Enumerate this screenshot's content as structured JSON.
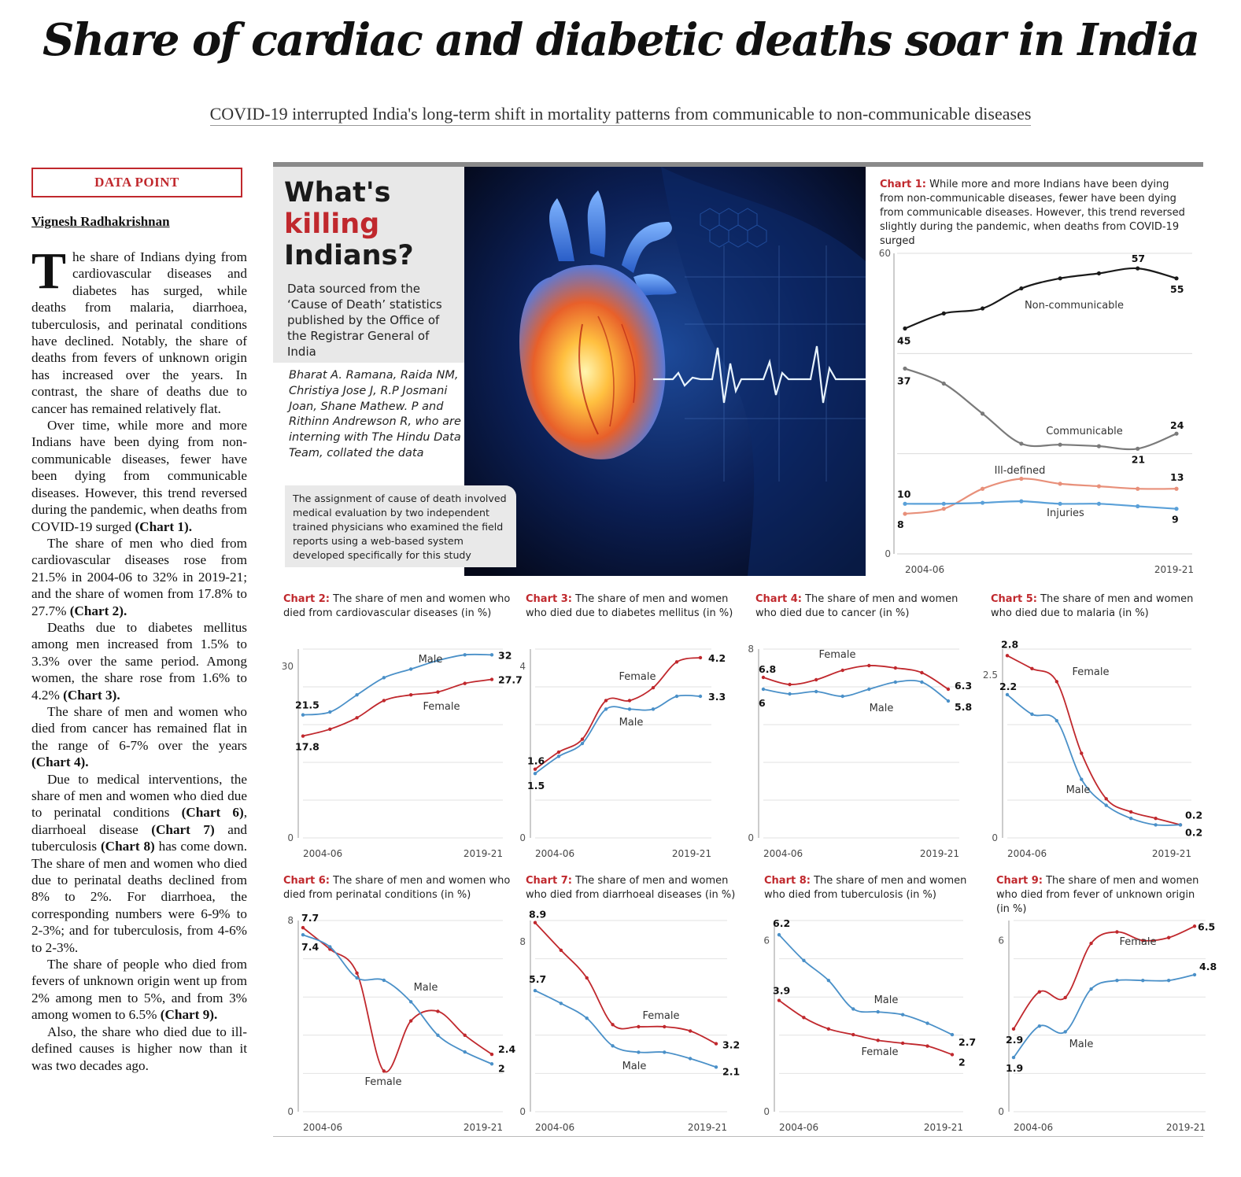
{
  "headline": "Share of cardiac and diabetic deaths soar in India",
  "subhead": "COVID-19 interrupted India's long-term shift in mortality patterns from communicable to non-communicable diseases",
  "data_point_label": "DATA POINT",
  "byline": "Vignesh Radhakrishnan",
  "article": {
    "dropcap": "T",
    "p1": "he share of Indians dying from cardiovascular diseases and diabetes has surged, while deaths from malaria, diarrhoea, tuberculosis, and perinatal conditions have declined. Notably, the share of deaths from fevers of unknown origin has increased over the years. In contrast, the share of deaths due to cancer has remained relatively flat.",
    "p2": "Over time, while more and more Indians have been dying from non-communicable diseases, fewer have been dying from communicable diseases. However, this trend reversed during the pandemic, when deaths from COVID-19 surged",
    "p2_ref": "(Chart 1).",
    "p3": "The share of men who died from cardiovascular diseases rose from 21.5% in 2004-06 to 32% in 2019-21; and the share of women from 17.8% to 27.7%",
    "p3_ref": "(Chart 2).",
    "p4": "Deaths due to diabetes mellitus among men increased from 1.5% to 3.3% over the same period. Among women, the share rose from 1.6% to 4.2%",
    "p4_ref": "(Chart 3).",
    "p5": "The share of men and women who died from cancer has remained flat in the range of 6-7% over the years",
    "p5_ref": "(Chart 4).",
    "p6a": "Due to medical interventions, the share of men and women who died due to perinatal conditions",
    "p6_ref1": "(Chart 6)",
    "p6b": ", diarrhoeal disease",
    "p6_ref2": "(Chart 7)",
    "p6c": "and tuberculosis",
    "p6_ref3": "(Chart 8)",
    "p6d": "has come down. The share of men and women who died due to perinatal deaths declined from 8% to 2%. For diarrhoea, the corresponding numbers were 6-9% to 2-3%; and for tuberculosis, from 4-6% to 2-3%.",
    "p7": "The share of people who died from fevers of unknown origin went up from 2% among men to 5%, and from 3% among women to 6.5%",
    "p7_ref": "(Chart 9).",
    "p8": "Also, the share who died due to ill-defined causes is higher now than it was two decades ago."
  },
  "panel": {
    "title_line1": "What's",
    "title_line2": "killing",
    "title_line3": "Indians?",
    "source": "Data sourced from the ‘Cause of Death’ statistics published by the Office of the Registrar General of India",
    "credits": "Bharat A. Ramana, Raida NM, Christiya Jose J, R.P Josmani Joan, Shane Mathew. P and Rithinn Andrewson R, who are interning with The Hindu Data Team, collated the data",
    "method": "The assignment of cause of death involved medical evaluation by two independent trained physicians who examined the field reports using a web-based system developed specifically for this study"
  },
  "colors": {
    "red": "#c0282d",
    "blue": "#4a90c8",
    "black": "#1a1a1a",
    "gray": "#7a7a7a",
    "salmon": "#e8907a",
    "lightblue": "#5aa0d8"
  },
  "chart_data": [
    {
      "id": "chart1",
      "type": "line",
      "caption_bold": "Chart 1:",
      "caption": "While more and more Indians have been dying from non-communicable diseases, fewer have been dying from communicable diseases. However, this trend reversed slightly during the pandemic, when deaths from COVID-19 surged",
      "x_start": "2004-06",
      "x_end": "2019-21",
      "ylim": [
        0,
        60
      ],
      "y_ticks": [
        "0",
        "60"
      ],
      "series": [
        {
          "name": "Non-communicable",
          "values": [
            45,
            48,
            49,
            53,
            55,
            56,
            57,
            55
          ],
          "start_label": "45",
          "end_label": "55",
          "peak_label": "57"
        },
        {
          "name": "Communicable",
          "values": [
            37,
            34,
            28,
            22,
            21.8,
            21.5,
            21,
            24
          ],
          "start_label": "37",
          "end_label": "24",
          "min_label": "21"
        },
        {
          "name": "Ill-defined",
          "values": [
            8,
            9,
            13,
            15,
            14,
            13.5,
            13,
            13
          ],
          "start_label": "8",
          "end_label": "13"
        },
        {
          "name": "Injuries",
          "values": [
            10,
            10,
            10.2,
            10.5,
            10,
            10,
            9.5,
            9
          ],
          "start_label": "10",
          "end_label": "9"
        }
      ]
    },
    {
      "id": "chart2",
      "type": "line",
      "caption_bold": "Chart 2:",
      "caption": "The share of men and women who died from cardiovascular diseases (in %)",
      "x_start": "2004-06",
      "x_end": "2019-21",
      "ylim": [
        0,
        33
      ],
      "y_ticks": [
        "0",
        "30"
      ],
      "series": [
        {
          "name": "Male",
          "values": [
            21.5,
            22,
            25,
            28,
            29.5,
            31,
            32,
            32
          ],
          "start_label": "21.5",
          "end_label": "32"
        },
        {
          "name": "Female",
          "values": [
            17.8,
            19,
            21,
            24,
            25,
            25.5,
            27,
            27.7
          ],
          "start_label": "17.8",
          "end_label": "27.7"
        }
      ]
    },
    {
      "id": "chart3",
      "type": "line",
      "caption_bold": "Chart 3:",
      "caption": "The share of men and women who died due to diabetes mellitus (in %)",
      "x_start": "2004-06",
      "x_end": "2019-21",
      "ylim": [
        0,
        4.4
      ],
      "y_ticks": [
        "0",
        "4"
      ],
      "series": [
        {
          "name": "Male",
          "values": [
            1.5,
            1.9,
            2.2,
            3,
            3,
            3,
            3.3,
            3.3
          ],
          "start_label": "1.5",
          "end_label": "3.3"
        },
        {
          "name": "Female",
          "values": [
            1.6,
            2,
            2.3,
            3.2,
            3.2,
            3.5,
            4.1,
            4.2
          ],
          "start_label": "1.6",
          "end_label": "4.2"
        }
      ]
    },
    {
      "id": "chart4",
      "type": "line",
      "caption_bold": "Chart 4:",
      "caption": "The share of men and women who died due to cancer (in %)",
      "x_start": "2004-06",
      "x_end": "2019-21",
      "ylim": [
        0,
        8
      ],
      "y_ticks": [
        "0",
        "8"
      ],
      "series": [
        {
          "name": "Female",
          "values": [
            6.8,
            6.5,
            6.7,
            7.1,
            7.3,
            7.2,
            7,
            6.3
          ],
          "start_label": "6.8",
          "end_label": "6.3"
        },
        {
          "name": "Male",
          "values": [
            6.3,
            6.1,
            6.2,
            6,
            6.3,
            6.6,
            6.6,
            5.8
          ],
          "start_label": "6",
          "end_label": "5.8"
        }
      ]
    },
    {
      "id": "chart5",
      "type": "line",
      "caption_bold": "Chart 5:",
      "caption": "The share of men and women who died due to malaria (in %)",
      "x_start": "2004-06",
      "x_end": "2019-21",
      "ylim": [
        0,
        2.9
      ],
      "y_ticks": [
        "0",
        "2.5"
      ],
      "series": [
        {
          "name": "Female",
          "values": [
            2.8,
            2.6,
            2.4,
            1.3,
            0.6,
            0.4,
            0.3,
            0.2
          ],
          "start_label": "2.8",
          "end_label": "0.2"
        },
        {
          "name": "Male",
          "values": [
            2.2,
            1.9,
            1.8,
            0.9,
            0.5,
            0.3,
            0.2,
            0.2
          ],
          "start_label": "2.2",
          "end_label": "0.2"
        }
      ]
    },
    {
      "id": "chart6",
      "type": "line",
      "caption_bold": "Chart 6:",
      "caption": "The share of men and women who died from perinatal conditions (in %)",
      "x_start": "2004-06",
      "x_end": "2019-21",
      "ylim": [
        0,
        8
      ],
      "y_ticks": [
        "0",
        "8"
      ],
      "series": [
        {
          "name": "Female",
          "values": [
            7.7,
            6.8,
            5.8,
            1.7,
            3.8,
            4.2,
            3.2,
            2.4
          ],
          "start_label": "7.7",
          "end_label": "2.4"
        },
        {
          "name": "Male",
          "values": [
            7.4,
            6.9,
            5.6,
            5.5,
            4.6,
            3.2,
            2.5,
            2
          ],
          "start_label": "7.4",
          "end_label": "2"
        }
      ]
    },
    {
      "id": "chart7",
      "type": "line",
      "caption_bold": "Chart 7:",
      "caption": "The share of men and women who died from diarrhoeal diseases (in %)",
      "x_start": "2004-06",
      "x_end": "2019-21",
      "ylim": [
        0,
        9
      ],
      "y_ticks": [
        "0",
        "8"
      ],
      "series": [
        {
          "name": "Female",
          "values": [
            8.9,
            7.6,
            6.3,
            4.1,
            4,
            4,
            3.8,
            3.2
          ],
          "start_label": "8.9",
          "end_label": "3.2"
        },
        {
          "name": "Male",
          "values": [
            5.7,
            5.1,
            4.4,
            3.1,
            2.8,
            2.8,
            2.5,
            2.1
          ],
          "start_label": "5.7",
          "end_label": "2.1"
        }
      ]
    },
    {
      "id": "chart8",
      "type": "line",
      "caption_bold": "Chart 8:",
      "caption": "The share of men and women who died from tuberculosis (in %)",
      "x_start": "2004-06",
      "x_end": "2019-21",
      "ylim": [
        0,
        6.7
      ],
      "y_ticks": [
        "0",
        "6"
      ],
      "series": [
        {
          "name": "Male",
          "values": [
            6.2,
            5.3,
            4.6,
            3.6,
            3.5,
            3.4,
            3.1,
            2.7
          ],
          "start_label": "6.2",
          "end_label": "2.7"
        },
        {
          "name": "Female",
          "values": [
            3.9,
            3.3,
            2.9,
            2.7,
            2.5,
            2.4,
            2.3,
            2
          ],
          "start_label": "3.9",
          "end_label": "2"
        }
      ]
    },
    {
      "id": "chart9",
      "type": "line",
      "caption_bold": "Chart 9:",
      "caption": "The share of men and women who died from fever of unknown origin (in %)",
      "x_start": "2004-06",
      "x_end": "2019-21",
      "ylim": [
        0,
        6.7
      ],
      "y_ticks": [
        "0",
        "6"
      ],
      "series": [
        {
          "name": "Female",
          "values": [
            2.9,
            4.2,
            4,
            5.9,
            6.3,
            6,
            6.1,
            6.5
          ],
          "start_label": "2.9",
          "end_label": "6.5"
        },
        {
          "name": "Male",
          "values": [
            1.9,
            3,
            2.8,
            4.3,
            4.6,
            4.6,
            4.6,
            4.8
          ],
          "start_label": "1.9",
          "end_label": "4.8"
        }
      ]
    }
  ]
}
